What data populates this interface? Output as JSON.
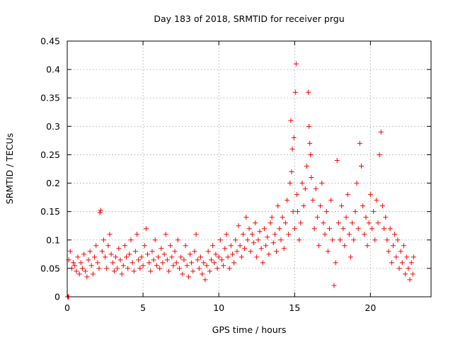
{
  "chart_data": {
    "type": "scatter",
    "title": "Day 183 of 2018, SRMTID for receiver prgu",
    "xlabel": "GPS time / hours",
    "ylabel": "SRMTID / TECUs",
    "xlim": [
      0,
      24
    ],
    "ylim": [
      0,
      0.45
    ],
    "x_ticks": [
      0,
      5,
      10,
      15,
      20
    ],
    "x_tick_labels": [
      "0",
      "5",
      "10",
      "15",
      "20"
    ],
    "y_ticks": [
      0,
      0.05,
      0.1,
      0.15,
      0.2,
      0.25,
      0.3,
      0.35,
      0.4,
      0.45
    ],
    "y_tick_labels": [
      "0",
      "0.05",
      "0.1",
      "0.15",
      "0.2",
      "0.25",
      "0.3",
      "0.35",
      "0.4",
      "0.45"
    ],
    "grid": true,
    "marker": "+",
    "color": "#ff0000",
    "series": [
      {
        "name": "SRMTID",
        "points": [
          [
            0.02,
            0.0
          ],
          [
            0.06,
            0.0
          ],
          [
            0.1,
            0.0
          ],
          [
            0.1,
            0.065
          ],
          [
            0.2,
            0.08
          ],
          [
            0.3,
            0.05
          ],
          [
            0.4,
            0.06
          ],
          [
            0.5,
            0.055
          ],
          [
            0.6,
            0.045
          ],
          [
            0.7,
            0.07
          ],
          [
            0.8,
            0.04
          ],
          [
            0.9,
            0.06
          ],
          [
            1.0,
            0.05
          ],
          [
            1.1,
            0.075
          ],
          [
            1.2,
            0.045
          ],
          [
            1.3,
            0.035
          ],
          [
            1.4,
            0.065
          ],
          [
            1.5,
            0.08
          ],
          [
            1.6,
            0.055
          ],
          [
            1.7,
            0.04
          ],
          [
            1.8,
            0.07
          ],
          [
            1.9,
            0.09
          ],
          [
            2.0,
            0.06
          ],
          [
            2.1,
            0.05
          ],
          [
            2.15,
            0.148
          ],
          [
            2.2,
            0.152
          ],
          [
            2.3,
            0.08
          ],
          [
            2.4,
            0.1
          ],
          [
            2.5,
            0.07
          ],
          [
            2.6,
            0.05
          ],
          [
            2.7,
            0.09
          ],
          [
            2.8,
            0.11
          ],
          [
            2.9,
            0.075
          ],
          [
            3.0,
            0.06
          ],
          [
            3.1,
            0.045
          ],
          [
            3.2,
            0.07
          ],
          [
            3.3,
            0.05
          ],
          [
            3.4,
            0.085
          ],
          [
            3.5,
            0.065
          ],
          [
            3.6,
            0.04
          ],
          [
            3.7,
            0.055
          ],
          [
            3.8,
            0.09
          ],
          [
            3.9,
            0.07
          ],
          [
            4.0,
            0.05
          ],
          [
            4.1,
            0.075
          ],
          [
            4.2,
            0.1
          ],
          [
            4.3,
            0.06
          ],
          [
            4.4,
            0.045
          ],
          [
            4.5,
            0.08
          ],
          [
            4.6,
            0.11
          ],
          [
            4.7,
            0.065
          ],
          [
            4.8,
            0.05
          ],
          [
            4.9,
            0.07
          ],
          [
            5.0,
            0.055
          ],
          [
            5.1,
            0.09
          ],
          [
            5.2,
            0.12
          ],
          [
            5.3,
            0.075
          ],
          [
            5.4,
            0.06
          ],
          [
            5.5,
            0.045
          ],
          [
            5.6,
            0.08
          ],
          [
            5.7,
            0.065
          ],
          [
            5.8,
            0.1
          ],
          [
            5.9,
            0.055
          ],
          [
            6.0,
            0.07
          ],
          [
            6.1,
            0.05
          ],
          [
            6.2,
            0.085
          ],
          [
            6.3,
            0.06
          ],
          [
            6.4,
            0.075
          ],
          [
            6.5,
            0.11
          ],
          [
            6.6,
            0.065
          ],
          [
            6.7,
            0.045
          ],
          [
            6.8,
            0.09
          ],
          [
            6.9,
            0.07
          ],
          [
            7.0,
            0.055
          ],
          [
            7.1,
            0.08
          ],
          [
            7.2,
            0.06
          ],
          [
            7.3,
            0.1
          ],
          [
            7.4,
            0.05
          ],
          [
            7.5,
            0.07
          ],
          [
            7.6,
            0.04
          ],
          [
            7.7,
            0.065
          ],
          [
            7.8,
            0.09
          ],
          [
            7.9,
            0.055
          ],
          [
            8.0,
            0.035
          ],
          [
            8.1,
            0.075
          ],
          [
            8.2,
            0.06
          ],
          [
            8.3,
            0.045
          ],
          [
            8.4,
            0.08
          ],
          [
            8.5,
            0.11
          ],
          [
            8.6,
            0.065
          ],
          [
            8.7,
            0.05
          ],
          [
            8.8,
            0.07
          ],
          [
            8.9,
            0.04
          ],
          [
            9.0,
            0.06
          ],
          [
            9.1,
            0.03
          ],
          [
            9.2,
            0.055
          ],
          [
            9.3,
            0.08
          ],
          [
            9.4,
            0.045
          ],
          [
            9.5,
            0.065
          ],
          [
            9.6,
            0.09
          ],
          [
            9.7,
            0.06
          ],
          [
            9.8,
            0.075
          ],
          [
            9.9,
            0.05
          ],
          [
            10.0,
            0.07
          ],
          [
            10.1,
            0.1
          ],
          [
            10.2,
            0.065
          ],
          [
            10.3,
            0.055
          ],
          [
            10.4,
            0.085
          ],
          [
            10.5,
            0.11
          ],
          [
            10.6,
            0.07
          ],
          [
            10.7,
            0.05
          ],
          [
            10.8,
            0.09
          ],
          [
            10.9,
            0.075
          ],
          [
            11.0,
            0.06
          ],
          [
            11.1,
            0.1
          ],
          [
            11.2,
            0.08
          ],
          [
            11.3,
            0.125
          ],
          [
            11.4,
            0.09
          ],
          [
            11.5,
            0.07
          ],
          [
            11.6,
            0.11
          ],
          [
            11.7,
            0.085
          ],
          [
            11.8,
            0.14
          ],
          [
            11.9,
            0.1
          ],
          [
            12.0,
            0.12
          ],
          [
            12.1,
            0.08
          ],
          [
            12.2,
            0.11
          ],
          [
            12.3,
            0.095
          ],
          [
            12.4,
            0.13
          ],
          [
            12.5,
            0.07
          ],
          [
            12.6,
            0.1
          ],
          [
            12.7,
            0.115
          ],
          [
            12.8,
            0.085
          ],
          [
            12.9,
            0.06
          ],
          [
            13.0,
            0.12
          ],
          [
            13.1,
            0.09
          ],
          [
            13.2,
            0.105
          ],
          [
            13.3,
            0.075
          ],
          [
            13.4,
            0.13
          ],
          [
            13.5,
            0.14
          ],
          [
            13.6,
            0.095
          ],
          [
            13.7,
            0.11
          ],
          [
            13.8,
            0.08
          ],
          [
            13.9,
            0.16
          ],
          [
            14.0,
            0.12
          ],
          [
            14.1,
            0.1
          ],
          [
            14.2,
            0.14
          ],
          [
            14.3,
            0.085
          ],
          [
            14.4,
            0.13
          ],
          [
            14.5,
            0.17
          ],
          [
            14.6,
            0.11
          ],
          [
            14.7,
            0.2
          ],
          [
            14.75,
            0.31
          ],
          [
            14.8,
            0.22
          ],
          [
            14.85,
            0.26
          ],
          [
            14.9,
            0.15
          ],
          [
            14.95,
            0.28
          ],
          [
            15.0,
            0.12
          ],
          [
            15.05,
            0.36
          ],
          [
            15.1,
            0.41
          ],
          [
            15.15,
            0.18
          ],
          [
            15.2,
            0.15
          ],
          [
            15.3,
            0.1
          ],
          [
            15.4,
            0.13
          ],
          [
            15.5,
            0.2
          ],
          [
            15.6,
            0.16
          ],
          [
            15.7,
            0.19
          ],
          [
            15.8,
            0.23
          ],
          [
            15.9,
            0.36
          ],
          [
            15.95,
            0.3
          ],
          [
            16.0,
            0.27
          ],
          [
            16.05,
            0.25
          ],
          [
            16.1,
            0.21
          ],
          [
            16.2,
            0.17
          ],
          [
            16.3,
            0.12
          ],
          [
            16.4,
            0.19
          ],
          [
            16.5,
            0.14
          ],
          [
            16.6,
            0.09
          ],
          [
            16.7,
            0.16
          ],
          [
            16.8,
            0.2
          ],
          [
            16.9,
            0.13
          ],
          [
            17.0,
            0.11
          ],
          [
            17.1,
            0.15
          ],
          [
            17.2,
            0.08
          ],
          [
            17.3,
            0.12
          ],
          [
            17.4,
            0.17
          ],
          [
            17.5,
            0.1
          ],
          [
            17.6,
            0.02
          ],
          [
            17.7,
            0.06
          ],
          [
            17.8,
            0.24
          ],
          [
            17.9,
            0.13
          ],
          [
            18.0,
            0.1
          ],
          [
            18.1,
            0.16
          ],
          [
            18.2,
            0.12
          ],
          [
            18.3,
            0.09
          ],
          [
            18.4,
            0.14
          ],
          [
            18.5,
            0.18
          ],
          [
            18.6,
            0.11
          ],
          [
            18.7,
            0.07
          ],
          [
            18.8,
            0.13
          ],
          [
            18.9,
            0.1
          ],
          [
            19.0,
            0.15
          ],
          [
            19.1,
            0.2
          ],
          [
            19.2,
            0.12
          ],
          [
            19.3,
            0.27
          ],
          [
            19.4,
            0.23
          ],
          [
            19.5,
            0.16
          ],
          [
            19.6,
            0.11
          ],
          [
            19.7,
            0.14
          ],
          [
            19.8,
            0.09
          ],
          [
            19.9,
            0.13
          ],
          [
            20.0,
            0.18
          ],
          [
            20.1,
            0.12
          ],
          [
            20.2,
            0.15
          ],
          [
            20.3,
            0.1
          ],
          [
            20.4,
            0.17
          ],
          [
            20.5,
            0.13
          ],
          [
            20.6,
            0.25
          ],
          [
            20.7,
            0.29
          ],
          [
            20.8,
            0.16
          ],
          [
            20.9,
            0.12
          ],
          [
            21.0,
            0.14
          ],
          [
            21.1,
            0.1
          ],
          [
            21.2,
            0.08
          ],
          [
            21.3,
            0.12
          ],
          [
            21.4,
            0.06
          ],
          [
            21.5,
            0.09
          ],
          [
            21.6,
            0.11
          ],
          [
            21.7,
            0.07
          ],
          [
            21.8,
            0.1
          ],
          [
            21.9,
            0.05
          ],
          [
            22.0,
            0.08
          ],
          [
            22.1,
            0.06
          ],
          [
            22.2,
            0.09
          ],
          [
            22.3,
            0.04
          ],
          [
            22.4,
            0.07
          ],
          [
            22.5,
            0.05
          ],
          [
            22.6,
            0.03
          ],
          [
            22.7,
            0.06
          ],
          [
            22.8,
            0.04
          ],
          [
            22.85,
            0.07
          ]
        ]
      }
    ]
  }
}
